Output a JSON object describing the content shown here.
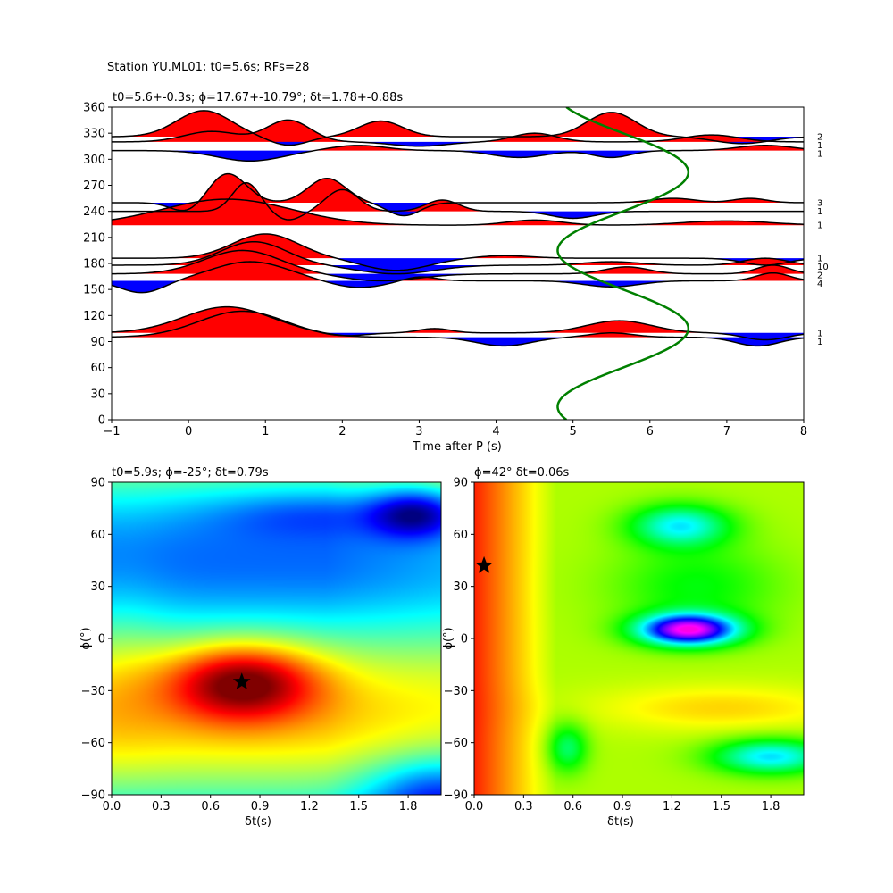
{
  "suptitle": "Station YU.ML01; t0=5.6s; RFs=28",
  "chart_data": [
    {
      "type": "line",
      "title": "t0=5.6+-0.3s; ϕ=17.67+-10.79°; δt=1.78+-0.88s",
      "xlabel": "Time after P (s)",
      "ylabel": "",
      "xlim": [
        -1,
        8
      ],
      "ylim": [
        0,
        360
      ],
      "xticks": [
        "−1",
        "0",
        "1",
        "2",
        "3",
        "4",
        "5",
        "6",
        "7",
        "8"
      ],
      "yticks": [
        "0",
        "30",
        "60",
        "90",
        "120",
        "150",
        "180",
        "210",
        "240",
        "270",
        "300",
        "330",
        "360"
      ],
      "positive_color": "#ff0000",
      "negative_color": "#0000ff",
      "curve_color": "#008000",
      "traces": [
        {
          "baz": 326,
          "count": "2",
          "comps": [
            [
              0.2,
              0.5,
              30
            ],
            [
              1.3,
              0.35,
              -10
            ],
            [
              2.5,
              0.4,
              18
            ],
            [
              5.5,
              0.45,
              28
            ],
            [
              7.2,
              0.5,
              -8
            ]
          ]
        },
        {
          "baz": 320,
          "count": "1",
          "comps": [
            [
              0.3,
              0.5,
              12
            ],
            [
              1.3,
              0.4,
              25
            ],
            [
              3.0,
              0.5,
              -5
            ],
            [
              4.5,
              0.4,
              10
            ],
            [
              6.8,
              0.5,
              8
            ]
          ]
        },
        {
          "baz": 310,
          "count": "1",
          "comps": [
            [
              0.8,
              0.6,
              -12
            ],
            [
              2.2,
              0.5,
              6
            ],
            [
              4.3,
              0.5,
              -8
            ],
            [
              5.5,
              0.35,
              -8
            ],
            [
              7.5,
              0.5,
              6
            ]
          ]
        },
        {
          "baz": 250,
          "count": "3",
          "comps": [
            [
              0.5,
              0.35,
              34
            ],
            [
              1.8,
              0.35,
              28
            ],
            [
              0.0,
              0.3,
              -12
            ],
            [
              2.8,
              0.3,
              -15
            ],
            [
              6.3,
              0.4,
              5
            ],
            [
              7.3,
              0.3,
              5
            ]
          ]
        },
        {
          "baz": 240,
          "count": "1",
          "comps": [
            [
              0.75,
              0.25,
              33
            ],
            [
              1.3,
              0.25,
              -10
            ],
            [
              2.0,
              0.3,
              25
            ],
            [
              3.3,
              0.3,
              13
            ],
            [
              5.0,
              0.4,
              -8
            ]
          ]
        },
        {
          "baz": 224,
          "count": "1",
          "comps": [
            [
              0.5,
              1.2,
              30
            ],
            [
              4.5,
              0.5,
              6
            ],
            [
              7.0,
              0.8,
              5
            ]
          ]
        },
        {
          "baz": 186,
          "count": "1",
          "comps": [
            [
              1.0,
              0.6,
              28
            ],
            [
              2.7,
              0.6,
              -14
            ],
            [
              4.1,
              0.5,
              3
            ],
            [
              7.5,
              0.4,
              -8
            ]
          ]
        },
        {
          "baz": 178,
          "count": "10",
          "comps": [
            [
              0.85,
              0.6,
              27
            ],
            [
              2.7,
              0.7,
              -10
            ],
            [
              5.5,
              0.5,
              4
            ],
            [
              7.5,
              0.4,
              8
            ]
          ]
        },
        {
          "baz": 168,
          "count": "2",
          "comps": [
            [
              0.7,
              0.7,
              27
            ],
            [
              2.5,
              0.7,
              -8
            ],
            [
              5.7,
              0.4,
              8
            ],
            [
              7.6,
              0.3,
              10
            ]
          ]
        },
        {
          "baz": 160,
          "count": "4",
          "comps": [
            [
              0.8,
              0.7,
              22
            ],
            [
              -0.6,
              0.4,
              -14
            ],
            [
              2.2,
              0.5,
              -8
            ],
            [
              3.0,
              0.3,
              5
            ],
            [
              5.5,
              0.5,
              -7
            ],
            [
              7.6,
              0.3,
              9
            ]
          ]
        },
        {
          "baz": 100,
          "count": "1",
          "comps": [
            [
              0.5,
              0.8,
              30
            ],
            [
              3.2,
              0.3,
              5
            ],
            [
              5.6,
              0.6,
              14
            ],
            [
              7.5,
              0.4,
              -8
            ],
            [
              2.0,
              0.4,
              -4
            ]
          ]
        },
        {
          "baz": 95,
          "count": "1",
          "comps": [
            [
              0.7,
              0.8,
              30
            ],
            [
              4.1,
              0.5,
              -10
            ],
            [
              5.5,
              0.4,
              5
            ],
            [
              7.4,
              0.4,
              -10
            ]
          ]
        }
      ],
      "prediction_curve": {
        "center": 5.65,
        "amplitude": 0.85,
        "period_deg": 180,
        "peak_baz": 105
      }
    },
    {
      "type": "heatmap",
      "title": "t0=5.9s; ϕ=-25°; δt=0.79s",
      "xlabel": "δt(s)",
      "ylabel": "ϕ(°)",
      "xlim": [
        0,
        2.0
      ],
      "ylim": [
        -90,
        90
      ],
      "xticks": [
        "0.0",
        "0.3",
        "0.6",
        "0.9",
        "1.2",
        "1.5",
        "1.8"
      ],
      "yticks": [
        "−90",
        "−60",
        "−30",
        "0",
        "30",
        "60",
        "90"
      ],
      "colormap": "jet",
      "best": {
        "dt": 0.79,
        "phi": -25
      }
    },
    {
      "type": "heatmap",
      "title": "ϕ=42° δt=0.06s",
      "xlabel": "δt(s)",
      "ylabel": "ϕ(°)",
      "xlim": [
        0,
        2.0
      ],
      "ylim": [
        -90,
        90
      ],
      "xticks": [
        "0.0",
        "0.3",
        "0.6",
        "0.9",
        "1.2",
        "1.5",
        "1.8"
      ],
      "yticks": [
        "−90",
        "−60",
        "−30",
        "0",
        "30",
        "60",
        "90"
      ],
      "colormap": "hsv",
      "best": {
        "dt": 0.06,
        "phi": 42
      }
    }
  ]
}
